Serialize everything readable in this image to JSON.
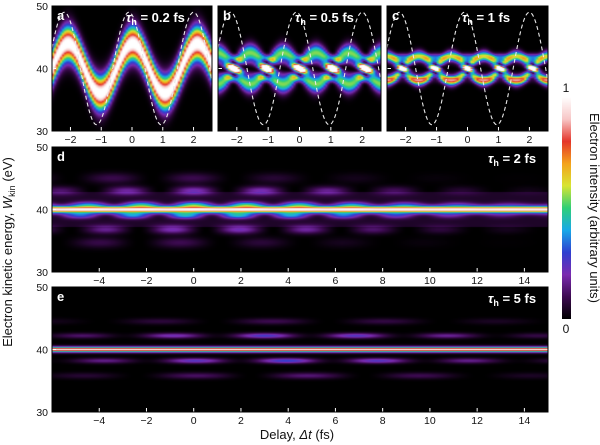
{
  "figure": {
    "y_axis_label": "Electron kinetic energy, ",
    "y_axis_symbol": "W",
    "y_axis_subscript": "kin",
    "y_axis_unit": " (eV)",
    "x_axis_label": "Delay, ",
    "x_axis_symbol": "Δt",
    "x_axis_unit": " (fs)",
    "colorbar_label": "Electron intensity (arbitrary units)",
    "colorbar_max_label": "1",
    "colorbar_min_label": "0"
  },
  "chart_data": [
    {
      "type": "heatmap",
      "panel": "a",
      "title": "τh = 0.2 fs",
      "title_prefix": "τ",
      "title_sub": "h",
      "title_value": " = 0.2 fs",
      "xlim": [
        -2.6,
        2.6
      ],
      "ylim": [
        30,
        50
      ],
      "x_ticks": [
        -2,
        -1,
        0,
        1,
        2
      ],
      "y_ticks": [
        30,
        40,
        50
      ],
      "center_eV": 40,
      "amplitude_eV": 4,
      "period_fs": 2.1,
      "band_width_eV": 1.9,
      "dashed_amplitude_eV": 9,
      "features": "single broad oscillating band"
    },
    {
      "type": "heatmap",
      "panel": "b",
      "title": "τh = 0.5 fs",
      "title_prefix": "τ",
      "title_sub": "h",
      "title_value": " = 0.5 fs",
      "xlim": [
        -2.6,
        2.6
      ],
      "ylim": [
        30,
        50
      ],
      "x_ticks": [
        -2,
        -1,
        0,
        1,
        2
      ],
      "y_ticks": [
        30,
        40,
        50
      ],
      "center_eV": 40,
      "amplitude_eV": 2.5,
      "period_fs": 2.1,
      "band_width_eV": 1.0,
      "dashed_amplitude_eV": 9,
      "features": "interference between two crossing bands"
    },
    {
      "type": "heatmap",
      "panel": "c",
      "title": "τh = 1 fs",
      "title_prefix": "τ",
      "title_sub": "h",
      "title_value": " = 1 fs",
      "xlim": [
        -2.6,
        2.6
      ],
      "ylim": [
        30,
        50
      ],
      "x_ticks": [
        -2,
        -1,
        0,
        1,
        2
      ],
      "y_ticks": [
        30,
        40,
        50
      ],
      "center_eV": 40,
      "amplitude_eV": 2,
      "period_fs": 2.1,
      "band_width_eV": 0.6,
      "dashed_amplitude_eV": 9,
      "features": "narrow interference fringes"
    },
    {
      "type": "heatmap",
      "panel": "d",
      "title": "τh = 2 fs",
      "title_prefix": "τ",
      "title_sub": "h",
      "title_value": " = 2 fs",
      "xlim": [
        -6,
        15
      ],
      "ylim": [
        30,
        50
      ],
      "x_ticks": [
        -4,
        -2,
        0,
        2,
        4,
        6,
        8,
        10,
        12,
        14
      ],
      "y_ticks": [
        30,
        40,
        50
      ],
      "center_eV": 40,
      "band_width_eV": 0.45,
      "features": "bright central line with sidebands"
    },
    {
      "type": "heatmap",
      "panel": "e",
      "title": "τh = 5 fs",
      "title_prefix": "τ",
      "title_sub": "h",
      "title_value": " = 5 fs",
      "xlim": [
        -6,
        15
      ],
      "ylim": [
        30,
        50
      ],
      "x_ticks": [
        -4,
        -2,
        0,
        2,
        4,
        6,
        8,
        10,
        12,
        14
      ],
      "y_ticks": [
        30,
        40,
        50
      ],
      "center_eV": 40,
      "band_width_eV": 0.3,
      "features": "bright central line with weak sidebands"
    }
  ],
  "colorbar": {
    "type": "colorbar",
    "range": [
      0,
      1
    ],
    "ticks": [
      0,
      1
    ],
    "colors": [
      "#000000",
      "#3c0a50",
      "#7a2bb0",
      "#2f3fd0",
      "#18a9e8",
      "#2fcf77",
      "#d8e532",
      "#f4a21c",
      "#e4352a",
      "#f7c6c6",
      "#ffffff"
    ]
  }
}
